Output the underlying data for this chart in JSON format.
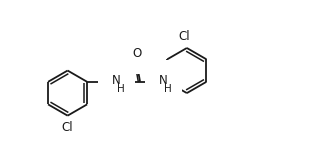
{
  "background_color": "#ffffff",
  "line_color": "#1a1a1a",
  "line_width": 1.3,
  "font_size": 8.5,
  "fig_width": 3.2,
  "fig_height": 1.58,
  "dpi": 100,
  "xlim": [
    0,
    10
  ],
  "ylim": [
    0,
    5
  ]
}
